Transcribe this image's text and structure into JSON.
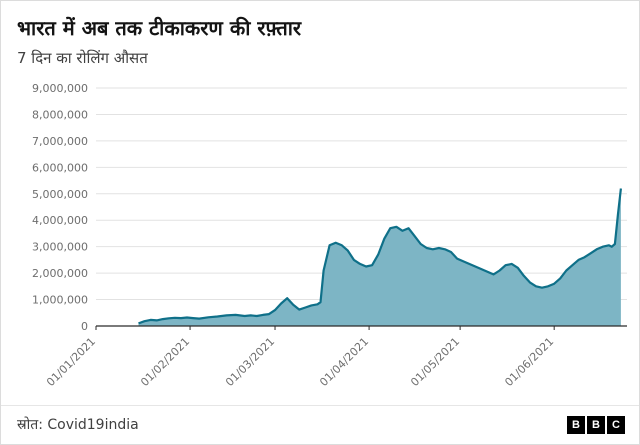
{
  "header": {
    "title": "भारत में अब तक टीकाकरण की रफ़्तार",
    "subtitle": "7 दिन का रोलिंग औसत"
  },
  "chart_data": {
    "type": "area",
    "title": "भारत में अब तक टीकाकरण की रफ़्तार",
    "subtitle": "7 दिन का रोलिंग औसत",
    "xlabel": "",
    "ylabel": "",
    "ylim": [
      0,
      9000000
    ],
    "x_domain_days": [
      1,
      176
    ],
    "grid": true,
    "legend": "none",
    "y_ticks": [
      {
        "value": 0,
        "label": "0"
      },
      {
        "value": 1000000,
        "label": "1,000,000"
      },
      {
        "value": 2000000,
        "label": "2,000,000"
      },
      {
        "value": 3000000,
        "label": "3,000,000"
      },
      {
        "value": 4000000,
        "label": "4,000,000"
      },
      {
        "value": 5000000,
        "label": "5,000,000"
      },
      {
        "value": 6000000,
        "label": "6,000,000"
      },
      {
        "value": 7000000,
        "label": "7,000,000"
      },
      {
        "value": 8000000,
        "label": "8,000,000"
      },
      {
        "value": 9000000,
        "label": "9,000,000"
      }
    ],
    "x_ticks": [
      {
        "day": 1,
        "label": "01/01/2021"
      },
      {
        "day": 32,
        "label": "01/02/2021"
      },
      {
        "day": 60,
        "label": "01/03/2021"
      },
      {
        "day": 91,
        "label": "01/04/2021"
      },
      {
        "day": 121,
        "label": "01/05/2021"
      },
      {
        "day": 152,
        "label": "01/06/2021"
      }
    ],
    "series": [
      {
        "name": "7 दिन का रोलिंग औसत",
        "days": [
          15,
          17,
          19,
          21,
          23,
          25,
          27,
          29,
          31,
          33,
          35,
          38,
          41,
          44,
          47,
          50,
          52,
          54,
          56,
          58,
          60,
          62,
          64,
          66,
          68,
          70,
          72,
          74,
          75,
          76,
          78,
          80,
          82,
          84,
          86,
          88,
          90,
          92,
          94,
          96,
          98,
          100,
          102,
          104,
          106,
          108,
          110,
          112,
          114,
          116,
          118,
          120,
          122,
          124,
          126,
          128,
          130,
          132,
          134,
          136,
          138,
          140,
          142,
          144,
          146,
          148,
          150,
          152,
          154,
          156,
          158,
          160,
          162,
          164,
          166,
          168,
          170,
          171,
          172,
          173,
          174
        ],
        "values": [
          100000,
          180000,
          230000,
          210000,
          260000,
          290000,
          310000,
          300000,
          320000,
          300000,
          280000,
          330000,
          360000,
          400000,
          420000,
          380000,
          400000,
          380000,
          420000,
          450000,
          600000,
          850000,
          1050000,
          800000,
          620000,
          700000,
          780000,
          820000,
          900000,
          2100000,
          3050000,
          3150000,
          3050000,
          2850000,
          2500000,
          2350000,
          2250000,
          2300000,
          2700000,
          3300000,
          3700000,
          3750000,
          3600000,
          3700000,
          3400000,
          3100000,
          2950000,
          2900000,
          2950000,
          2900000,
          2800000,
          2550000,
          2450000,
          2350000,
          2250000,
          2150000,
          2050000,
          1950000,
          2100000,
          2300000,
          2350000,
          2200000,
          1900000,
          1650000,
          1500000,
          1450000,
          1500000,
          1600000,
          1800000,
          2100000,
          2300000,
          2500000,
          2600000,
          2750000,
          2900000,
          3000000,
          3050000,
          3000000,
          3100000,
          4200000,
          5200000
        ]
      }
    ],
    "colors": {
      "fill": "#7db5c5",
      "line": "#0f7089",
      "grid": "#e2e2e2",
      "axis": "#2b2b2b",
      "tick_label": "#6e6e6e"
    }
  },
  "footer": {
    "source": "स्रोत: Covid19india",
    "logo_letters": [
      "B",
      "B",
      "C"
    ]
  }
}
